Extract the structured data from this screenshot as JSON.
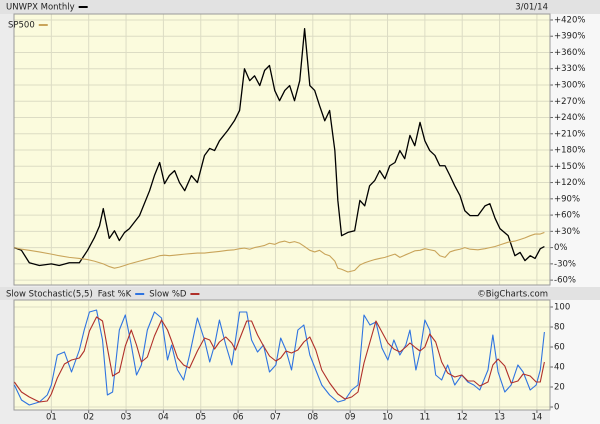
{
  "chart_data": [
    {
      "type": "line",
      "date": "3/01/14",
      "x": [
        2000.01,
        2000.2,
        2000.41,
        2000.68,
        2001.0,
        2001.21,
        2001.48,
        2001.75,
        2001.97,
        2002.15,
        2002.29,
        2002.39,
        2002.55,
        2002.69,
        2002.82,
        2002.96,
        2003.09,
        2003.36,
        2003.63,
        2003.76,
        2003.9,
        2004.03,
        2004.16,
        2004.3,
        2004.43,
        2004.57,
        2004.75,
        2004.91,
        2005.1,
        2005.24,
        2005.37,
        2005.5,
        2005.72,
        2005.9,
        2006.04,
        2006.17,
        2006.31,
        2006.44,
        2006.58,
        2006.71,
        2006.84,
        2006.98,
        2007.11,
        2007.25,
        2007.38,
        2007.51,
        2007.65,
        2007.78,
        2007.92,
        2008.05,
        2008.18,
        2008.32,
        2008.45,
        2008.59,
        2008.67,
        2008.77,
        2008.94,
        2009.12,
        2009.26,
        2009.39,
        2009.52,
        2009.66,
        2009.79,
        2009.93,
        2010.06,
        2010.2,
        2010.33,
        2010.46,
        2010.6,
        2010.73,
        2010.87,
        2011.0,
        2011.13,
        2011.27,
        2011.4,
        2011.54,
        2011.67,
        2011.8,
        2011.94,
        2012.07,
        2012.21,
        2012.42,
        2012.61,
        2012.74,
        2012.88,
        2013.01,
        2013.23,
        2013.41,
        2013.55,
        2013.68,
        2013.82,
        2013.95,
        2014.09,
        2014.2
      ],
      "series": [
        {
          "name": "UNWPX Monthly",
          "color": "#000000",
          "values": [
            0,
            -5,
            -28,
            -33,
            -30,
            -33,
            -28,
            -28,
            -5,
            18,
            40,
            72,
            17,
            31,
            13,
            28,
            35,
            59,
            105,
            133,
            157,
            118,
            133,
            142,
            120,
            105,
            133,
            120,
            170,
            183,
            179,
            197,
            216,
            234,
            253,
            330,
            308,
            317,
            299,
            327,
            336,
            290,
            271,
            290,
            299,
            271,
            308,
            404,
            299,
            290,
            262,
            234,
            253,
            179,
            87,
            22,
            28,
            31,
            87,
            77,
            114,
            124,
            142,
            127,
            151,
            157,
            179,
            164,
            207,
            188,
            231,
            197,
            179,
            170,
            151,
            151,
            133,
            114,
            96,
            68,
            59,
            59,
            77,
            81,
            54,
            35,
            22,
            -15,
            -9,
            -24,
            -15,
            -20,
            -2,
            2
          ]
        },
        {
          "name": "SP500",
          "color": "#c9a45a",
          "values": [
            0,
            -3,
            -5,
            -8,
            -12,
            -15,
            -18,
            -20,
            -22,
            -25,
            -28,
            -30,
            -35,
            -38,
            -36,
            -33,
            -30,
            -25,
            -20,
            -18,
            -15,
            -14,
            -15,
            -14,
            -13,
            -12,
            -11,
            -10,
            -10,
            -9,
            -8,
            -7,
            -5,
            -4,
            -2,
            -1,
            -3,
            0,
            2,
            4,
            8,
            6,
            10,
            12,
            9,
            11,
            8,
            2,
            -5,
            -8,
            -5,
            -12,
            -15,
            -25,
            -38,
            -40,
            -45,
            -42,
            -32,
            -28,
            -25,
            -22,
            -20,
            -18,
            -15,
            -12,
            -18,
            -14,
            -10,
            -6,
            -5,
            -2,
            -4,
            -6,
            -15,
            -18,
            -8,
            -5,
            -3,
            0,
            -3,
            -4,
            -2,
            0,
            2,
            5,
            10,
            12,
            15,
            18,
            22,
            25,
            25,
            28
          ]
        }
      ],
      "xlim": [
        2000,
        2014.35
      ],
      "xticks": [
        2001,
        2002,
        2003,
        2004,
        2005,
        2006,
        2007,
        2008,
        2009,
        2010,
        2011,
        2012,
        2013,
        2014
      ],
      "ylim": [
        -69,
        431
      ],
      "yticks": [
        {
          "value": -60,
          "label": "-60%"
        },
        {
          "value": -30,
          "label": "-30%"
        },
        {
          "value": 0,
          "label": "0%"
        },
        {
          "value": 30,
          "label": "+30%"
        },
        {
          "value": 60,
          "label": "+60%"
        },
        {
          "value": 90,
          "label": "+90%"
        },
        {
          "value": 120,
          "label": "+120%"
        },
        {
          "value": 150,
          "label": "+150%"
        },
        {
          "value": 180,
          "label": "+180%"
        },
        {
          "value": 210,
          "label": "+210%"
        },
        {
          "value": 240,
          "label": "+240%"
        },
        {
          "value": 270,
          "label": "+270%"
        },
        {
          "value": 300,
          "label": "+300%"
        },
        {
          "value": 330,
          "label": "+330%"
        },
        {
          "value": 360,
          "label": "+360%"
        },
        {
          "value": 390,
          "label": "+390%"
        },
        {
          "value": 420,
          "label": "+420%"
        }
      ],
      "grid": true
    },
    {
      "type": "line",
      "title": "Slow Stochastic(5,5)",
      "credit": "©BigCharts.com",
      "x": [
        2000.01,
        2000.2,
        2000.41,
        2000.68,
        2000.89,
        2001.0,
        2001.16,
        2001.35,
        2001.54,
        2001.75,
        2001.88,
        2002.02,
        2002.21,
        2002.37,
        2002.5,
        2002.64,
        2002.82,
        2002.98,
        2003.14,
        2003.28,
        2003.41,
        2003.57,
        2003.76,
        2003.95,
        2004.11,
        2004.22,
        2004.38,
        2004.54,
        2004.7,
        2004.91,
        2005.1,
        2005.24,
        2005.37,
        2005.5,
        2005.67,
        2005.83,
        2005.93,
        2006.04,
        2006.23,
        2006.36,
        2006.52,
        2006.68,
        2006.84,
        2007.01,
        2007.14,
        2007.28,
        2007.43,
        2007.6,
        2007.76,
        2007.92,
        2008.08,
        2008.24,
        2008.45,
        2008.67,
        2008.86,
        2009.04,
        2009.21,
        2009.37,
        2009.53,
        2009.69,
        2009.85,
        2010.01,
        2010.17,
        2010.33,
        2010.49,
        2010.6,
        2010.76,
        2010.87,
        2011.0,
        2011.13,
        2011.29,
        2011.45,
        2011.61,
        2011.8,
        2011.99,
        2012.15,
        2012.31,
        2012.47,
        2012.69,
        2012.82,
        2012.96,
        2013.14,
        2013.31,
        2013.49,
        2013.63,
        2013.82,
        2013.98,
        2014.09,
        2014.2
      ],
      "series": [
        {
          "name": "Fast %K",
          "color": "#2f74e0",
          "values": [
            22,
            7,
            2,
            5,
            12,
            22,
            52,
            55,
            35,
            57,
            77,
            95,
            97,
            67,
            12,
            15,
            77,
            92,
            62,
            32,
            42,
            77,
            95,
            89,
            47,
            62,
            37,
            27,
            52,
            89,
            67,
            45,
            62,
            87,
            62,
            42,
            67,
            95,
            95,
            67,
            55,
            62,
            35,
            42,
            69,
            57,
            37,
            77,
            82,
            52,
            37,
            22,
            12,
            5,
            7,
            17,
            22,
            92,
            82,
            85,
            59,
            47,
            67,
            52,
            62,
            77,
            37,
            55,
            87,
            77,
            32,
            27,
            42,
            22,
            32,
            25,
            22,
            17,
            37,
            72,
            35,
            15,
            22,
            42,
            35,
            17,
            22,
            37,
            75
          ]
        },
        {
          "name": "Slow %D",
          "color": "#b0302a",
          "values": [
            25,
            15,
            10,
            5,
            6,
            13,
            29,
            43,
            47,
            49,
            56,
            76,
            90,
            86,
            59,
            31,
            35,
            61,
            77,
            62,
            45,
            50,
            71,
            87,
            77,
            66,
            49,
            42,
            39,
            56,
            69,
            67,
            58,
            65,
            70,
            64,
            57,
            68,
            86,
            86,
            72,
            61,
            51,
            46,
            49,
            56,
            54,
            57,
            65,
            70,
            57,
            37,
            24,
            13,
            8,
            10,
            15,
            44,
            65,
            86,
            75,
            64,
            58,
            55,
            60,
            64,
            59,
            56,
            60,
            73,
            65,
            45,
            34,
            30,
            32,
            26,
            26,
            21,
            25,
            42,
            48,
            41,
            24,
            26,
            33,
            31,
            25,
            25,
            45
          ]
        }
      ],
      "xlim": [
        2000,
        2014.35
      ],
      "xticks": [
        {
          "value": 2001,
          "label": "01"
        },
        {
          "value": 2002,
          "label": "02"
        },
        {
          "value": 2003,
          "label": "03"
        },
        {
          "value": 2004,
          "label": "04"
        },
        {
          "value": 2005,
          "label": "05"
        },
        {
          "value": 2006,
          "label": "06"
        },
        {
          "value": 2007,
          "label": "07"
        },
        {
          "value": 2008,
          "label": "08"
        },
        {
          "value": 2009,
          "label": "09"
        },
        {
          "value": 2010,
          "label": "10"
        },
        {
          "value": 2011,
          "label": "11"
        },
        {
          "value": 2012,
          "label": "12"
        },
        {
          "value": 2013,
          "label": "13"
        },
        {
          "value": 2014,
          "label": "14"
        }
      ],
      "ylim": [
        -3,
        107
      ],
      "yticks": [
        0,
        20,
        40,
        60,
        80,
        100
      ],
      "grid": true
    }
  ]
}
